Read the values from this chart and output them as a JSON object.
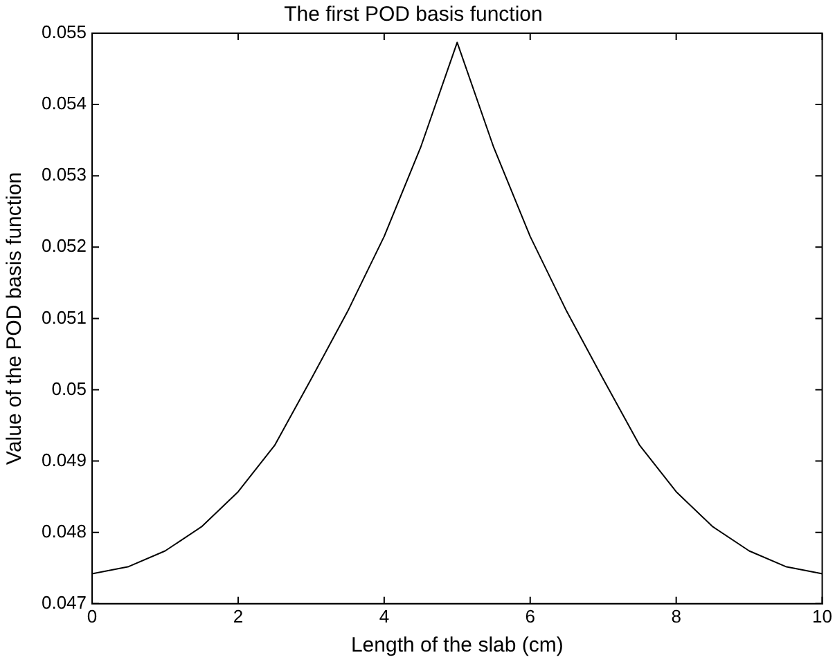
{
  "chart_data": {
    "type": "line",
    "title": "The first POD basis function",
    "xlabel": "Length of the slab (cm)",
    "ylabel": "Value of the POD basis function",
    "x": [
      0,
      0.5,
      1,
      1.5,
      2,
      2.5,
      3,
      3.5,
      4,
      4.5,
      5,
      5.5,
      6,
      6.5,
      7,
      7.5,
      8,
      8.5,
      9,
      9.5,
      10
    ],
    "series": [
      {
        "color": "#000000",
        "values": [
          0.04742,
          0.04752,
          0.04774,
          0.04808,
          0.04857,
          0.04922,
          0.05015,
          0.0511,
          0.05215,
          0.0534,
          0.05487,
          0.0534,
          0.05215,
          0.0511,
          0.05015,
          0.04922,
          0.04857,
          0.04808,
          0.04774,
          0.04752,
          0.04742
        ]
      }
    ],
    "xlim": [
      0,
      10
    ],
    "xticks": [
      0,
      2,
      4,
      6,
      8,
      10
    ],
    "ylim": [
      0.047,
      0.055
    ],
    "yticks": [
      0.047,
      0.048,
      0.049,
      0.05,
      0.051,
      0.052,
      0.053,
      0.054,
      0.055
    ],
    "grid": false,
    "legend": false,
    "marker": "none",
    "line_style": "solid"
  }
}
